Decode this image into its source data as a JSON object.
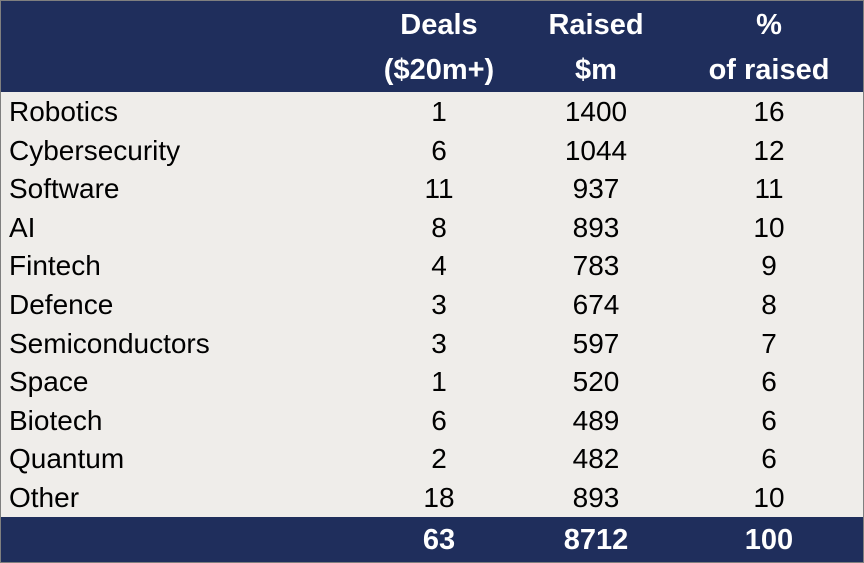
{
  "chart_data": {
    "type": "table",
    "headers": {
      "category": "",
      "deals": [
        "Deals",
        "($20m+)"
      ],
      "raised": [
        "Raised",
        "$m"
      ],
      "pct": [
        "%",
        "of raised"
      ]
    },
    "rows": [
      {
        "category": "Robotics",
        "deals": "1",
        "raised": "1400",
        "pct": "16"
      },
      {
        "category": "Cybersecurity",
        "deals": "6",
        "raised": "1044",
        "pct": "12"
      },
      {
        "category": "Software",
        "deals": "11",
        "raised": "937",
        "pct": "11"
      },
      {
        "category": "AI",
        "deals": "8",
        "raised": "893",
        "pct": "10"
      },
      {
        "category": "Fintech",
        "deals": "4",
        "raised": "783",
        "pct": "9"
      },
      {
        "category": "Defence",
        "deals": "3",
        "raised": "674",
        "pct": "8"
      },
      {
        "category": "Semiconductors",
        "deals": "3",
        "raised": "597",
        "pct": "7"
      },
      {
        "category": "Space",
        "deals": "1",
        "raised": "520",
        "pct": "6"
      },
      {
        "category": "Biotech",
        "deals": "6",
        "raised": "489",
        "pct": "6"
      },
      {
        "category": "Quantum",
        "deals": "2",
        "raised": "482",
        "pct": "6"
      },
      {
        "category": "Other",
        "deals": "18",
        "raised": "893",
        "pct": "10"
      }
    ],
    "totals": {
      "deals": "63",
      "raised": "8712",
      "pct": "100"
    }
  },
  "colors": {
    "header_bg": "#1f2e5c",
    "body_bg": "#efedea",
    "header_text": "#ffffff"
  }
}
